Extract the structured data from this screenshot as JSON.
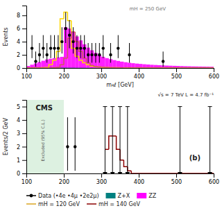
{
  "chart_data": [
    {
      "type": "histogram",
      "x_label": "m₄ℓ [GeV]",
      "y_label": "Events",
      "xlim": [
        100,
        600
      ],
      "ylim": [
        0,
        9.5
      ],
      "xticks": [
        100,
        200,
        300,
        400,
        500,
        600
      ],
      "yticks": [
        0,
        2,
        4,
        6,
        8
      ],
      "series": [
        {
          "type": "histogram",
          "color": "#FF00FF",
          "bins": [
            100,
            110,
            120,
            130,
            140,
            150,
            160,
            170,
            180,
            190,
            200,
            210,
            220,
            230,
            240,
            250,
            260,
            270,
            280,
            290,
            300,
            310,
            320,
            330,
            340,
            350,
            360,
            370,
            380,
            390,
            400,
            410,
            420,
            430,
            440,
            450,
            460,
            470,
            480,
            490,
            500,
            510,
            520,
            530,
            540,
            550,
            560,
            570,
            580,
            590,
            600
          ],
          "values": [
            0.3,
            0.5,
            0.7,
            0.9,
            1.1,
            1.3,
            1.4,
            1.5,
            1.6,
            1.7,
            6.2,
            6.0,
            5.5,
            4.8,
            4.2,
            3.6,
            3.1,
            2.7,
            2.3,
            2.0,
            1.7,
            1.5,
            1.35,
            1.2,
            1.08,
            0.97,
            0.88,
            0.8,
            0.73,
            0.67,
            0.62,
            0.57,
            0.53,
            0.49,
            0.46,
            0.43,
            0.4,
            0.37,
            0.35,
            0.33,
            0.31,
            0.29,
            0.27,
            0.26,
            0.24,
            0.23,
            0.22,
            0.21,
            0.2,
            0.19
          ]
        },
        {
          "type": "histogram",
          "color": "#008080",
          "bins": [
            100,
            110,
            120,
            130,
            140,
            150,
            160,
            170,
            180,
            190,
            200,
            210,
            220,
            230,
            240,
            250,
            260,
            270,
            280,
            290,
            300,
            310,
            320,
            330,
            340,
            350,
            360,
            370,
            380,
            390,
            400,
            410,
            420,
            430,
            440,
            450,
            460,
            470,
            480,
            490,
            500,
            510,
            520,
            530,
            540,
            550,
            560,
            570,
            580,
            590,
            600
          ],
          "values": [
            0.05,
            0.07,
            0.08,
            0.08,
            0.08,
            0.07,
            0.07,
            0.06,
            0.06,
            0.05,
            0.05,
            0.04,
            0.04,
            0.03,
            0.03,
            0.03,
            0.02,
            0.02,
            0.02,
            0.02,
            0.02,
            0.01,
            0.01,
            0.01,
            0.01,
            0.01,
            0.01,
            0.01,
            0.01,
            0.0,
            0.0,
            0.0,
            0.0,
            0.0,
            0.0,
            0.0,
            0.0,
            0.0,
            0.0,
            0.0,
            0.0,
            0.0,
            0.0,
            0.0,
            0.0,
            0.0,
            0.0,
            0.0,
            0.0,
            0.0
          ]
        },
        {
          "type": "step",
          "color": "#FFD700",
          "bins": [
            100,
            110,
            120,
            130,
            140,
            150,
            160,
            170,
            180,
            190,
            200,
            210,
            220,
            230,
            240,
            250,
            260,
            270,
            280,
            290,
            300,
            310,
            320,
            330,
            340,
            350,
            360,
            370,
            380,
            390,
            400,
            600
          ],
          "values": [
            0.0,
            0.0,
            0.0,
            0.0,
            0.05,
            0.08,
            0.5,
            1.2,
            2.5,
            7.5,
            8.5,
            7.2,
            3.0,
            1.8,
            1.2,
            0.8,
            0.5,
            0.3,
            0.2,
            0.15,
            0.1,
            0.08,
            0.06,
            0.05,
            0.04,
            0.03,
            0.02,
            0.02,
            0.01,
            0.01,
            0.0
          ]
        },
        {
          "type": "step",
          "color": "#CD5C5C",
          "bins": [
            100,
            110,
            120,
            130,
            140,
            150,
            160,
            170,
            180,
            190,
            200,
            210,
            220,
            230,
            240,
            250,
            260,
            270,
            280,
            290,
            300,
            310,
            320,
            330,
            340,
            350,
            360,
            370,
            380,
            390,
            400,
            600
          ],
          "values": [
            0.0,
            0.0,
            0.0,
            0.0,
            0.0,
            0.0,
            0.0,
            0.05,
            0.1,
            0.5,
            1.5,
            4.5,
            5.5,
            4.0,
            2.5,
            1.5,
            0.8,
            0.4,
            0.25,
            0.15,
            0.1,
            0.07,
            0.05,
            0.04,
            0.03,
            0.02,
            0.01,
            0.01,
            0.0,
            0.0,
            0.0
          ]
        },
        {
          "type": "scatter",
          "color": "#000000",
          "marker": "circle",
          "x": [
            115,
            125,
            135,
            145,
            155,
            165,
            175,
            185,
            195,
            205,
            215,
            225,
            235,
            245,
            255,
            265,
            275,
            285,
            295,
            305,
            325,
            345,
            375,
            465
          ],
          "values": [
            3,
            1,
            2,
            3,
            2,
            3,
            3,
            3,
            4,
            6,
            5,
            4,
            3,
            3,
            3,
            2,
            2,
            2,
            2,
            3,
            2,
            3,
            2,
            1
          ],
          "error_lo": [
            1.5,
            0.8,
            1.2,
            1.5,
            1.2,
            1.5,
            1.5,
            1.5,
            1.8,
            2.2,
            2.0,
            1.8,
            1.5,
            1.5,
            1.5,
            1.2,
            1.2,
            1.2,
            1.2,
            1.5,
            1.2,
            1.5,
            1.2,
            0.8
          ],
          "error_hi": [
            2.0,
            1.5,
            1.8,
            2.0,
            1.8,
            2.0,
            2.0,
            2.0,
            2.2,
            2.5,
            2.3,
            2.2,
            2.0,
            2.0,
            2.0,
            1.8,
            1.8,
            1.8,
            1.8,
            2.0,
            1.8,
            2.0,
            1.8,
            1.5
          ]
        }
      ],
      "annotations": [
        "mH = 250 GeV"
      ]
    },
    {
      "type": "histogram",
      "y_label": "Events/2 GeV",
      "xlim": [
        100,
        600
      ],
      "ylim": [
        0,
        5.5
      ],
      "xticks": [
        100,
        200,
        300,
        400,
        500,
        600
      ],
      "yticks": [
        0,
        1,
        2,
        3,
        4,
        5
      ],
      "excluded_region": {
        "range": [
          100,
          200
        ],
        "color": "#d4edda",
        "label": "Excluded (95% C.L.)"
      },
      "series": [
        {
          "type": "step",
          "color": "#8B0000",
          "bins": [
            310,
            320,
            330,
            340,
            350,
            360,
            370,
            380,
            600
          ],
          "values": [
            1.8,
            2.8,
            2.8,
            1.8,
            1.0,
            0.5,
            0.2,
            0.0
          ]
        },
        {
          "type": "scatter",
          "color": "#000000",
          "marker": "circle",
          "x": [
            210,
            230,
            310,
            330,
            350,
            370,
            510,
            590
          ],
          "values": [
            2.0,
            2.0,
            0.0,
            0.0,
            0.0,
            0.0,
            0.0,
            0.0
          ],
          "error_lo": [
            1.8,
            1.8,
            0.0,
            0.0,
            0.0,
            0.0,
            0.0,
            0.0
          ],
          "error_hi": [
            2.2,
            2.2,
            5.0,
            5.0,
            5.0,
            5.0,
            5.0,
            5.0
          ]
        }
      ],
      "annotations": [
        "CMS",
        "√s = 7 TeV L = 4.7 fb⁻¹",
        "(b)"
      ],
      "legend": "bottom",
      "legend_entries": [
        {
          "name": "Data (•4e •4μ •2e2μ)",
          "type": "scatter",
          "marker": "circle",
          "color": "#000000"
        },
        {
          "name": "Z+X",
          "type": "histogram",
          "color": "#008080"
        },
        {
          "name": "ZZ",
          "type": "histogram",
          "color": "#FF00FF"
        },
        {
          "name": "mH = 120 GeV",
          "type": "step",
          "color": "#DAA520"
        },
        {
          "name": "mH = 140 GeV",
          "type": "step",
          "color": "#8B0000"
        }
      ]
    }
  ]
}
